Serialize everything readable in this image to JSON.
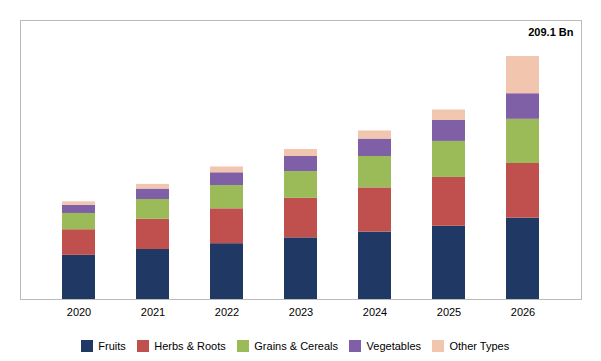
{
  "chart_data": {
    "type": "bar",
    "stacked": true,
    "categories": [
      "2020",
      "2021",
      "2022",
      "2023",
      "2024",
      "2025",
      "2026"
    ],
    "series": [
      {
        "name": "Fruits",
        "color": "#1f3864",
        "values": [
          38,
          43,
          48,
          53,
          58,
          63,
          70
        ]
      },
      {
        "name": "Herbs & Roots",
        "color": "#c0504d",
        "values": [
          22,
          26,
          30,
          34,
          38,
          42,
          47
        ]
      },
      {
        "name": "Grains & Cereals",
        "color": "#9bbb59",
        "values": [
          14,
          17,
          20,
          23,
          27,
          31,
          38
        ]
      },
      {
        "name": "Vegetables",
        "color": "#7f5fa6",
        "values": [
          7,
          9,
          11,
          13,
          15,
          18,
          22
        ]
      },
      {
        "name": "Other Types",
        "color": "#f2c6ae",
        "values": [
          3,
          4,
          5,
          6,
          7,
          9,
          32
        ]
      }
    ],
    "ylim": [
      0,
      240
    ],
    "annotation": "209.1 Bn",
    "legend": "bottom",
    "tick_labels": "x"
  }
}
